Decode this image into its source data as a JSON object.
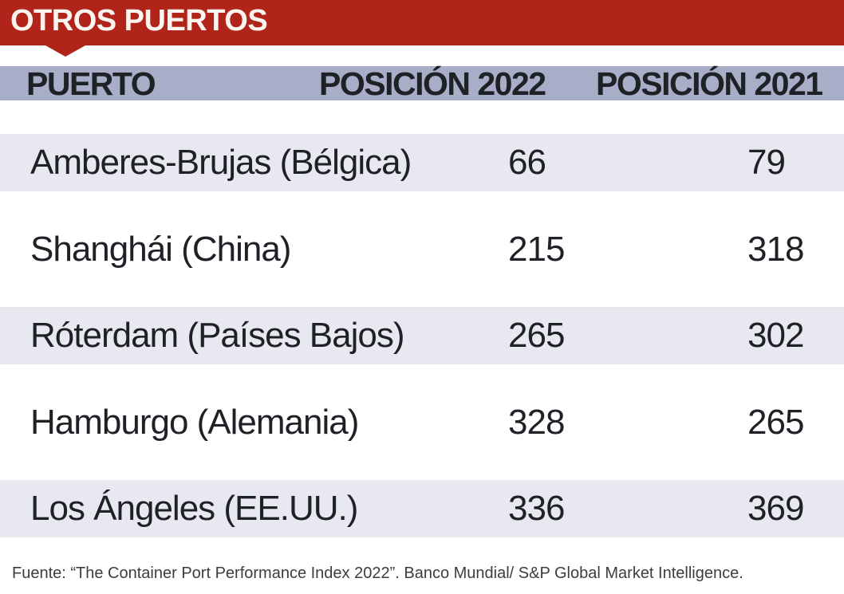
{
  "header": {
    "title": "OTROS PUERTOS"
  },
  "colors": {
    "banner_red": "#b0241a",
    "header_band": "#a8adc8",
    "row_band": "#e8e8f0",
    "ink": "#1e2126",
    "banner_text": "#faf6ef",
    "source_text": "#3d3d3d"
  },
  "footer": {
    "source": "Fuente: “The Container Port Performance Index 2022”. Banco Mundial/ S&P Global Market Intelligence."
  },
  "chart_data": {
    "type": "table",
    "title": "OTROS PUERTOS",
    "columns": [
      "PUERTO",
      "POSICIÓN 2022",
      "POSICIÓN 2021"
    ],
    "rows": [
      {
        "puerto": "Amberes-Brujas (Bélgica)",
        "posicion_2022": 66,
        "posicion_2021": 79
      },
      {
        "puerto": "Shanghái (China)",
        "posicion_2022": 215,
        "posicion_2021": 318
      },
      {
        "puerto": "Róterdam (Países Bajos)",
        "posicion_2022": 265,
        "posicion_2021": 302
      },
      {
        "puerto": "Hamburgo (Alemania)",
        "posicion_2022": 328,
        "posicion_2021": 265
      },
      {
        "puerto": "Los Ángeles (EE.UU.)",
        "posicion_2022": 336,
        "posicion_2021": 369
      }
    ],
    "source": "Fuente: “The Container Port Performance Index 2022”. Banco Mundial/ S&P Global Market Intelligence.",
    "layout": {
      "row_banding": [
        "band",
        "plain",
        "band",
        "plain",
        "band"
      ],
      "grid": false
    }
  }
}
